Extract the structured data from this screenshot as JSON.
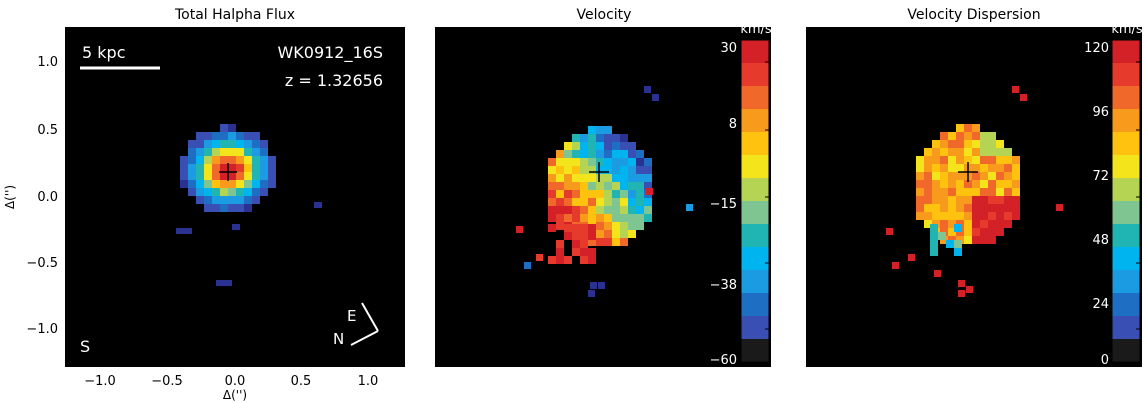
{
  "chart_data": [
    {
      "type": "heatmap",
      "title": "Total Halpha Flux",
      "xlabel": "Δ('')",
      "ylabel": "Δ('')",
      "xlim": [
        -1.25,
        1.25
      ],
      "ylim": [
        -1.25,
        1.25
      ],
      "xticks": [
        "−1.0",
        "−0.5",
        "0.0",
        "0.5",
        "1.0"
      ],
      "yticks": [
        "1.0",
        "0.5",
        "0.0",
        "−0.5",
        "−1.0"
      ],
      "annotations": {
        "scale_bar": "5 kpc",
        "object": "WK0912_16S",
        "redshift": "z = 1.32656",
        "corner": "S",
        "compass_e": "E",
        "compass_n": "N"
      },
      "peak_position": [
        -0.05,
        0.17
      ]
    },
    {
      "type": "heatmap",
      "title": "Velocity",
      "colorbar": {
        "unit": "km/s",
        "range": [
          -60,
          30
        ],
        "ticks": [
          "30",
          "8",
          "−15",
          "−38",
          "−60"
        ]
      },
      "center_marker": [
        -0.05,
        0.17
      ]
    },
    {
      "type": "heatmap",
      "title": "Velocity Dispersion",
      "colorbar": {
        "unit": "km/s",
        "range": [
          0,
          120
        ],
        "ticks": [
          "120",
          "96",
          "72",
          "48",
          "24",
          "0"
        ]
      },
      "center_marker": [
        -0.05,
        0.17
      ]
    }
  ],
  "colors": {
    "background": "#000000",
    "scale": [
      "#1a1a1a",
      "#2b3191",
      "#3a4fb4",
      "#1e6fc3",
      "#1a9be2",
      "#00b4ef",
      "#20b5b3",
      "#7ec591",
      "#b6d453",
      "#f4e41c",
      "#fec20f",
      "#f89a1c",
      "#f1682b",
      "#e63a2d",
      "#d42027"
    ]
  }
}
